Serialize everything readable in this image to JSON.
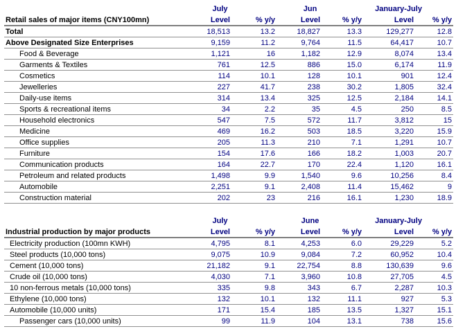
{
  "colors": {
    "accent_navy": "#000080",
    "label_black": "#000000",
    "rule_dark": "#7e7e7e",
    "rule_light": "#e0e0e0"
  },
  "tables": [
    {
      "title": "Retail sales of major items (CNY100mn)",
      "period_headers": [
        "July",
        "Jun",
        "January-July"
      ],
      "sub_headers": [
        "Level",
        "% y/y",
        "Level",
        "% y/y",
        "Level",
        "% y/y"
      ],
      "rows": [
        {
          "label": "Total",
          "bold": true,
          "indent": false,
          "values": [
            "18,513",
            "13.2",
            "18,827",
            "13.3",
            "129,277",
            "12.8"
          ]
        },
        {
          "label": "Above Designated Size Enterprises",
          "bold": true,
          "indent": false,
          "values": [
            "9,159",
            "11.2",
            "9,764",
            "11.5",
            "64,417",
            "10.7"
          ]
        },
        {
          "label": "Food & Beverage",
          "bold": false,
          "indent": true,
          "values": [
            "1,121",
            "16",
            "1,182",
            "12.9",
            "8,074",
            "13.4"
          ]
        },
        {
          "label": "Garments & Textiles",
          "bold": false,
          "indent": true,
          "values": [
            "761",
            "12.5",
            "886",
            "15.0",
            "6,174",
            "11.9"
          ]
        },
        {
          "label": "Cosmetics",
          "bold": false,
          "indent": true,
          "values": [
            "114",
            "10.1",
            "128",
            "10.1",
            "901",
            "12.4"
          ]
        },
        {
          "label": "Jewelleries",
          "bold": false,
          "indent": true,
          "values": [
            "227",
            "41.7",
            "238",
            "30.2",
            "1,805",
            "32.4"
          ]
        },
        {
          "label": "Daily-use items",
          "bold": false,
          "indent": true,
          "values": [
            "314",
            "13.4",
            "325",
            "12.5",
            "2,184",
            "14.1"
          ]
        },
        {
          "label": "Sports & recreational items",
          "bold": false,
          "indent": true,
          "values": [
            "34",
            "2.2",
            "35",
            "4.5",
            "250",
            "8.5"
          ]
        },
        {
          "label": "Household electronics",
          "bold": false,
          "indent": true,
          "values": [
            "547",
            "7.5",
            "572",
            "11.7",
            "3,812",
            "15"
          ]
        },
        {
          "label": "Medicine",
          "bold": false,
          "indent": true,
          "values": [
            "469",
            "16.2",
            "503",
            "18.5",
            "3,220",
            "15.9"
          ]
        },
        {
          "label": "Office supplies",
          "bold": false,
          "indent": true,
          "values": [
            "205",
            "11.3",
            "210",
            "7.1",
            "1,291",
            "10.7"
          ]
        },
        {
          "label": "Furniture",
          "bold": false,
          "indent": true,
          "values": [
            "154",
            "17.6",
            "166",
            "18.2",
            "1,003",
            "20.7"
          ]
        },
        {
          "label": "Communication products",
          "bold": false,
          "indent": true,
          "values": [
            "164",
            "22.7",
            "170",
            "22.4",
            "1,120",
            "16.1"
          ]
        },
        {
          "label": "Petroleum and related products",
          "bold": false,
          "indent": true,
          "values": [
            "1,498",
            "9.9",
            "1,540",
            "9.6",
            "10,256",
            "8.4"
          ]
        },
        {
          "label": "Automobile",
          "bold": false,
          "indent": true,
          "values": [
            "2,251",
            "9.1",
            "2,408",
            "11.4",
            "15,462",
            "9"
          ]
        },
        {
          "label": "Construction material",
          "bold": false,
          "indent": true,
          "values": [
            "202",
            "23",
            "216",
            "16.1",
            "1,230",
            "18.9"
          ]
        }
      ]
    },
    {
      "title": "Industrial production by major products",
      "period_headers": [
        "July",
        "June",
        "January-July"
      ],
      "sub_headers": [
        "Level",
        "% y/y",
        "Level",
        "% y/y",
        "Level",
        "% y/y"
      ],
      "rows": [
        {
          "label": "Electricity production (100mn KWH)",
          "bold": false,
          "indent": false,
          "values": [
            "4,795",
            "8.1",
            "4,253",
            "6.0",
            "29,229",
            "5.2"
          ]
        },
        {
          "label": "Steel products (10,000 tons)",
          "bold": false,
          "indent": false,
          "values": [
            "9,075",
            "10.9",
            "9,084",
            "7.2",
            "60,952",
            "10.4"
          ]
        },
        {
          "label": "Cement (10,000 tons)",
          "bold": false,
          "indent": false,
          "values": [
            "21,182",
            "9.1",
            "22,754",
            "8.8",
            "130,639",
            "9.6"
          ]
        },
        {
          "label": "Crude oil (10,000 tons)",
          "bold": false,
          "indent": false,
          "values": [
            "4,030",
            "7.1",
            "3,960",
            "10.8",
            "27,705",
            "4.5"
          ]
        },
        {
          "label": "10 non-ferrous metals (10,000 tons)",
          "bold": false,
          "indent": false,
          "values": [
            "335",
            "9.8",
            "343",
            "6.7",
            "2,287",
            "10.3"
          ]
        },
        {
          "label": "Ethylene (10,000 tons)",
          "bold": false,
          "indent": false,
          "values": [
            "132",
            "10.1",
            "132",
            "11.1",
            "927",
            "5.3"
          ]
        },
        {
          "label": "Automobile (10,000 units)",
          "bold": false,
          "indent": false,
          "values": [
            "171",
            "15.4",
            "185",
            "13.5",
            "1,327",
            "15.1"
          ]
        },
        {
          "label": "Passenger cars (10,000 units)",
          "bold": false,
          "indent": true,
          "values": [
            "99",
            "11.9",
            "104",
            "13.1",
            "738",
            "15.6"
          ]
        }
      ]
    }
  ]
}
